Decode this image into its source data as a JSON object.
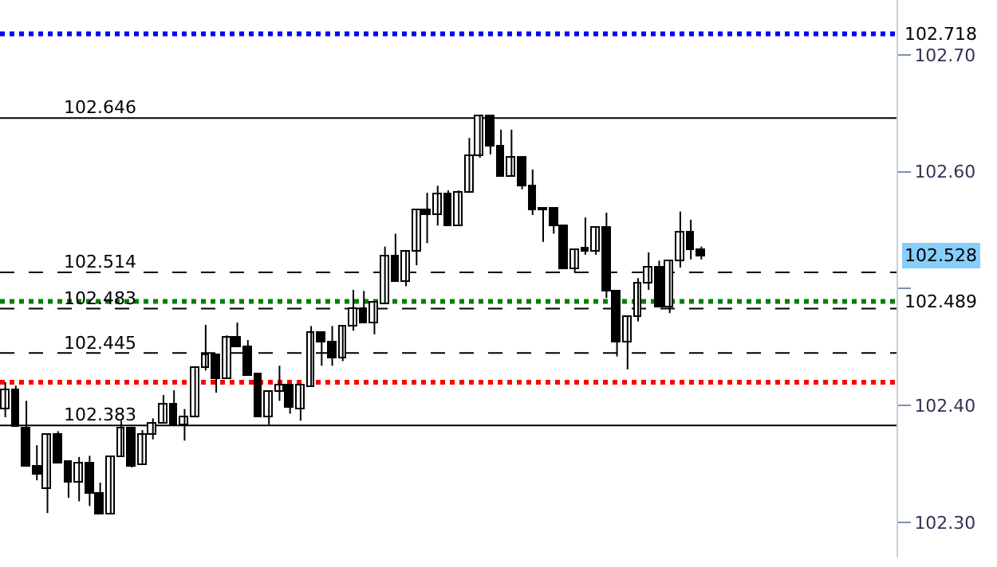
{
  "chart_data": {
    "type": "candlestick",
    "categories": [
      null,
      null,
      null,
      null,
      null,
      null,
      null,
      null,
      null,
      null,
      null,
      null,
      null,
      null,
      null,
      null,
      null,
      null,
      null,
      null,
      null,
      null,
      null,
      null,
      null,
      null,
      null,
      null,
      null,
      null,
      null,
      null,
      null,
      null,
      null,
      null,
      null,
      null,
      null,
      null,
      null,
      null,
      null,
      null,
      null,
      null,
      null,
      null,
      null,
      null,
      null,
      null,
      null,
      null,
      null,
      null,
      null,
      null,
      null,
      null,
      null,
      null,
      null,
      null,
      null,
      null,
      null,
      null,
      null,
      null,
      null,
      null,
      null,
      null,
      null,
      null,
      null,
      null,
      null,
      null,
      null,
      null,
      null,
      null,
      null
    ],
    "ohlc": [
      [
        102.397,
        102.42,
        102.39,
        102.413
      ],
      [
        102.413,
        102.417,
        102.382,
        102.382
      ],
      [
        102.381,
        102.404,
        102.348,
        102.348
      ],
      [
        102.348,
        102.366,
        102.336,
        102.341
      ],
      [
        102.329,
        102.375,
        102.308,
        102.375
      ],
      [
        102.375,
        102.378,
        102.351,
        102.351
      ],
      [
        102.352,
        102.352,
        102.321,
        102.334
      ],
      [
        102.334,
        102.356,
        102.318,
        102.351
      ],
      [
        102.351,
        102.357,
        102.314,
        102.325
      ],
      [
        102.325,
        102.334,
        102.307,
        102.307
      ],
      [
        102.307,
        102.356,
        102.307,
        102.356
      ],
      [
        102.356,
        102.387,
        102.356,
        102.381
      ],
      [
        102.381,
        102.381,
        102.347,
        102.348
      ],
      [
        102.349,
        102.379,
        102.349,
        102.375
      ],
      [
        102.375,
        102.389,
        102.371,
        102.385
      ],
      [
        102.385,
        102.409,
        102.385,
        102.401
      ],
      [
        102.401,
        102.413,
        102.383,
        102.383
      ],
      [
        102.383,
        102.397,
        102.37,
        102.39
      ],
      [
        102.39,
        102.432,
        102.39,
        102.432
      ],
      [
        102.432,
        102.469,
        102.43,
        102.443
      ],
      [
        102.443,
        102.443,
        102.411,
        102.423
      ],
      [
        102.423,
        102.46,
        102.423,
        102.458
      ],
      [
        102.458,
        102.471,
        102.45,
        102.45
      ],
      [
        102.45,
        102.456,
        102.426,
        102.426
      ],
      [
        102.427,
        102.427,
        102.39,
        102.39
      ],
      [
        102.39,
        102.412,
        102.383,
        102.412
      ],
      [
        102.412,
        102.434,
        102.404,
        102.417
      ],
      [
        102.417,
        102.417,
        102.393,
        102.398
      ],
      [
        102.397,
        102.417,
        102.387,
        102.417
      ],
      [
        102.416,
        102.468,
        102.416,
        102.462
      ],
      [
        102.462,
        102.462,
        102.434,
        102.454
      ],
      [
        102.454,
        102.468,
        102.434,
        102.441
      ],
      [
        102.441,
        102.468,
        102.438,
        102.468
      ],
      [
        102.468,
        102.499,
        102.464,
        102.482
      ],
      [
        102.482,
        102.498,
        102.471,
        102.471
      ],
      [
        102.471,
        102.488,
        102.461,
        102.488
      ],
      [
        102.487,
        102.536,
        102.487,
        102.527
      ],
      [
        102.527,
        102.547,
        102.506,
        102.506
      ],
      [
        102.506,
        102.532,
        102.502,
        102.532
      ],
      [
        102.532,
        102.567,
        102.52,
        102.567
      ],
      [
        102.567,
        102.582,
        102.539,
        102.563
      ],
      [
        102.563,
        102.588,
        102.554,
        102.581
      ],
      [
        102.581,
        102.584,
        102.554,
        102.554
      ],
      [
        102.554,
        102.584,
        102.554,
        102.582
      ],
      [
        102.582,
        102.629,
        102.582,
        102.614
      ],
      [
        102.614,
        102.649,
        102.612,
        102.647
      ],
      [
        102.647,
        102.647,
        102.615,
        102.622
      ],
      [
        102.622,
        102.636,
        102.596,
        102.596
      ],
      [
        102.596,
        102.636,
        102.596,
        102.612
      ],
      [
        102.612,
        102.612,
        102.585,
        102.588
      ],
      [
        102.588,
        102.602,
        102.563,
        102.567
      ],
      [
        102.569,
        102.569,
        102.54,
        102.567
      ],
      [
        102.569,
        102.569,
        102.547,
        102.554
      ],
      [
        102.554,
        102.554,
        102.517,
        102.517
      ],
      [
        102.517,
        102.533,
        102.514,
        102.533
      ],
      [
        102.535,
        102.561,
        102.529,
        102.532
      ],
      [
        102.532,
        102.552,
        102.529,
        102.552
      ],
      [
        102.552,
        102.565,
        102.492,
        102.498
      ],
      [
        102.498,
        102.498,
        102.442,
        102.454
      ],
      [
        102.454,
        102.476,
        102.431,
        102.476
      ],
      [
        102.476,
        102.509,
        102.472,
        102.505
      ],
      [
        102.505,
        102.531,
        102.499,
        102.518
      ],
      [
        102.518,
        102.524,
        102.484,
        102.484
      ],
      [
        102.484,
        102.524,
        102.479,
        102.524
      ],
      [
        102.524,
        102.566,
        102.518,
        102.548
      ],
      [
        102.548,
        102.559,
        102.525,
        102.533
      ],
      [
        102.533,
        102.536,
        102.525,
        102.528
      ],
      null,
      null,
      null,
      null,
      null,
      null,
      null,
      null,
      null,
      null,
      null,
      null,
      null,
      null,
      null,
      null,
      null,
      null
    ],
    "ylim": [
      102.27,
      102.747
    ],
    "yticks": [
      {
        "value": 102.3,
        "label": "102.30"
      },
      {
        "value": 102.4,
        "label": "102.40"
      },
      {
        "value": 102.5,
        "label": null
      },
      {
        "value": 102.6,
        "label": "102.60"
      },
      {
        "value": 102.7,
        "label": "102.70"
      }
    ],
    "ref_lines": [
      {
        "axis": "y",
        "value": 102.718,
        "label": "102.718",
        "color": "#0000ff",
        "line_style": "dotted"
      },
      {
        "axis": "y",
        "value": 102.646,
        "label": "102.646",
        "color": "#000000",
        "line_style": "solid"
      },
      {
        "axis": "y",
        "value": 102.514,
        "label": "102.514",
        "color": "#000000",
        "line_style": "dashed"
      },
      {
        "axis": "y",
        "value": 102.489,
        "label": "102.489",
        "color": "#008000",
        "line_style": "dotted"
      },
      {
        "axis": "y",
        "value": 102.483,
        "label": "102.483",
        "color": "#000000",
        "line_style": "dashed"
      },
      {
        "axis": "y",
        "value": 102.445,
        "label": "102.445",
        "color": "#000000",
        "line_style": "dashed"
      },
      {
        "axis": "y",
        "value": 102.42,
        "color": "#ff0000",
        "line_style": "dotted"
      },
      {
        "axis": "y",
        "value": 102.383,
        "label": "102.383",
        "color": "#000000",
        "line_style": "solid"
      }
    ],
    "annotations": [
      "102.528"
    ],
    "tick_labels": "y"
  }
}
